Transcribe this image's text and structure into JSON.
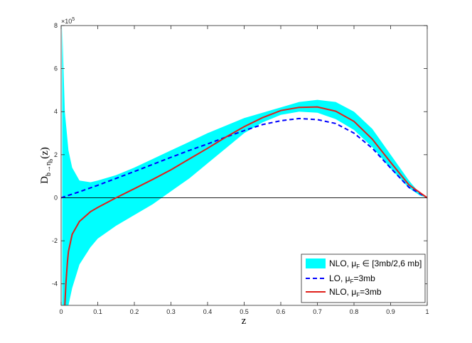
{
  "chart_data": {
    "type": "line",
    "title": "",
    "xlabel": "z",
    "ylabel_main": "D",
    "ylabel_sub": "b→η",
    "ylabel_subsub": "b",
    "ylabel_tail": "(z)",
    "xlim": [
      0,
      1
    ],
    "ylim": [
      -5,
      8
    ],
    "y_scale_label": "×10",
    "y_scale_exponent": "5",
    "x_ticks": [
      0,
      0.1,
      0.2,
      0.3,
      0.4,
      0.5,
      0.6,
      0.7,
      0.8,
      0.9,
      1
    ],
    "x_tick_labels": [
      "0",
      "0.1",
      "0.2",
      "0.3",
      "0.4",
      "0.5",
      "0.6",
      "0.7",
      "0.8",
      "0.9",
      "1"
    ],
    "y_ticks": [
      -4,
      -2,
      0,
      2,
      4,
      6,
      8
    ],
    "y_tick_labels": [
      "-4",
      "-2",
      "0",
      "2",
      "4",
      "6",
      "8"
    ],
    "grid": false,
    "zero_line": true,
    "legend_position": "bottom-right",
    "band": {
      "name": "NLO, μ",
      "name_sub": "F",
      "name_tail": " ∈ [3mb/2,6 mb]",
      "color": "#00FFFF",
      "x": [
        0.003,
        0.01,
        0.02,
        0.03,
        0.05,
        0.08,
        0.1,
        0.15,
        0.2,
        0.25,
        0.3,
        0.35,
        0.4,
        0.45,
        0.5,
        0.55,
        0.6,
        0.65,
        0.7,
        0.75,
        0.8,
        0.85,
        0.9,
        0.95,
        0.98,
        1.0
      ],
      "upper": [
        8.0,
        4.0,
        2.2,
        1.4,
        0.8,
        0.72,
        0.8,
        1.05,
        1.4,
        1.8,
        2.2,
        2.6,
        3.0,
        3.35,
        3.7,
        3.95,
        4.2,
        4.45,
        4.55,
        4.45,
        4.0,
        3.2,
        2.0,
        0.8,
        0.2,
        0.0
      ],
      "lower": [
        -5.0,
        -5.0,
        -5.0,
        -4.2,
        -3.1,
        -2.3,
        -1.9,
        -1.3,
        -0.8,
        -0.3,
        0.3,
        0.9,
        1.6,
        2.3,
        3.0,
        3.5,
        3.85,
        4.0,
        3.95,
        3.65,
        3.15,
        2.35,
        1.35,
        0.45,
        0.1,
        0.0
      ]
    },
    "series": [
      {
        "name": "LO, μ",
        "name_sub": "F",
        "name_tail": "=3mb",
        "color": "#0000FF",
        "style": "dashed",
        "x": [
          0,
          0.05,
          0.1,
          0.15,
          0.2,
          0.25,
          0.3,
          0.35,
          0.4,
          0.45,
          0.5,
          0.55,
          0.6,
          0.65,
          0.7,
          0.75,
          0.8,
          0.85,
          0.9,
          0.95,
          1.0
        ],
        "values": [
          0,
          0.28,
          0.58,
          0.9,
          1.22,
          1.55,
          1.88,
          2.2,
          2.5,
          2.82,
          3.12,
          3.4,
          3.58,
          3.68,
          3.63,
          3.45,
          3.0,
          2.3,
          1.38,
          0.48,
          0.0
        ]
      },
      {
        "name": "NLO, μ",
        "name_sub": "F",
        "name_tail": "=3mb",
        "color": "#E0201A",
        "style": "solid",
        "x": [
          0.01,
          0.013,
          0.017,
          0.02,
          0.03,
          0.05,
          0.08,
          0.1,
          0.15,
          0.2,
          0.25,
          0.3,
          0.35,
          0.4,
          0.45,
          0.5,
          0.55,
          0.6,
          0.65,
          0.7,
          0.75,
          0.8,
          0.85,
          0.9,
          0.95,
          1.0
        ],
        "values": [
          -5.0,
          -4.0,
          -3.0,
          -2.5,
          -1.7,
          -1.1,
          -0.65,
          -0.45,
          0.0,
          0.42,
          0.85,
          1.3,
          1.8,
          2.3,
          2.82,
          3.3,
          3.72,
          4.05,
          4.2,
          4.22,
          4.02,
          3.55,
          2.72,
          1.65,
          0.6,
          0.0
        ]
      }
    ]
  }
}
